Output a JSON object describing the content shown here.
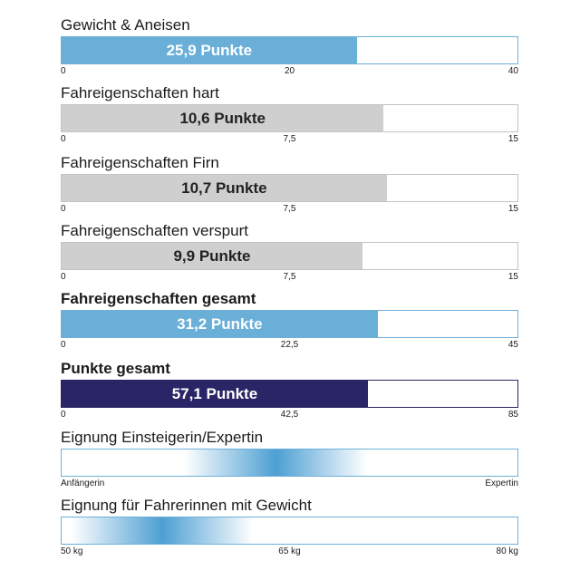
{
  "colors": {
    "blue": "#69afd8",
    "grey": "#cfcfcf",
    "navy": "#2a2566",
    "gradient_peak": "#4d9fd3"
  },
  "chart_data": [
    {
      "type": "bar",
      "title": "Gewicht & Aneisen",
      "value": 25.9,
      "value_label": "25,9 Punkte",
      "xlim": [
        0,
        40
      ],
      "ticks": [
        "0",
        "20",
        "40"
      ],
      "color": "blue"
    },
    {
      "type": "bar",
      "title": "Fahreigenschaften hart",
      "value": 10.6,
      "value_label": "10,6 Punkte",
      "xlim": [
        0,
        15
      ],
      "ticks": [
        "0",
        "7,5",
        "15"
      ],
      "color": "grey"
    },
    {
      "type": "bar",
      "title": "Fahreigenschaften Firn",
      "value": 10.7,
      "value_label": "10,7 Punkte",
      "xlim": [
        0,
        15
      ],
      "ticks": [
        "0",
        "7,5",
        "15"
      ],
      "color": "grey"
    },
    {
      "type": "bar",
      "title": "Fahreigenschaften verspurt",
      "value": 9.9,
      "value_label": "9,9 Punkte",
      "xlim": [
        0,
        15
      ],
      "ticks": [
        "0",
        "7,5",
        "15"
      ],
      "color": "grey"
    },
    {
      "type": "bar",
      "title": "Fahreigenschaften gesamt",
      "value": 31.2,
      "value_label": "31,2 Punkte",
      "xlim": [
        0,
        45
      ],
      "ticks": [
        "0",
        "22,5",
        "45"
      ],
      "color": "blue",
      "bold": true
    },
    {
      "type": "bar",
      "title": "Punkte gesamt",
      "value": 57.1,
      "value_label": "57,1 Punkte",
      "xlim": [
        0,
        85
      ],
      "ticks": [
        "0",
        "42,5",
        "85"
      ],
      "color": "navy",
      "bold": true
    },
    {
      "type": "heatmap",
      "title": "Eignung Einsteigerin/Expertin",
      "ticks": [
        "Anfängerin",
        "Expertin"
      ],
      "peak_position": 0.47,
      "spread": 0.2
    },
    {
      "type": "heatmap",
      "title": "Eignung für Fahrerinnen mit Gewicht",
      "ticks": [
        "50 kg",
        "65 kg",
        "80 kg"
      ],
      "peak_position": 0.22,
      "spread": 0.2
    }
  ]
}
